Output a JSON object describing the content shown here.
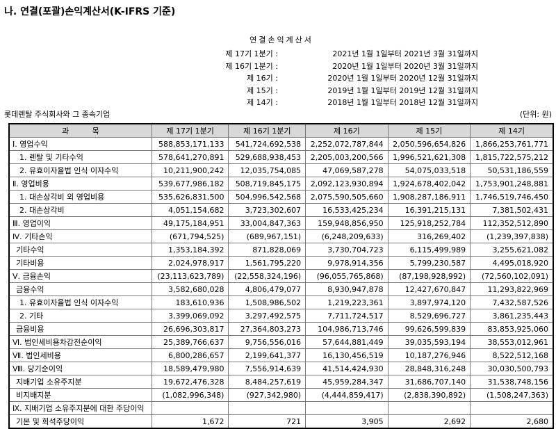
{
  "title": "나. 연결(포괄)손익계산서(K-IFRS 기준)",
  "statement_title": "연결손익계산서",
  "periods": [
    {
      "label": "제 17기 1분기 :",
      "range": "2021년 1월 1일부터 2021년 3월 31일까지"
    },
    {
      "label": "제 16기 1분기 :",
      "range": "2020년 1월 1일부터 2020년 3월 31일까지"
    },
    {
      "label": "제 16기 :",
      "range": "2020년 1월 1일부터 2020년 12월 31일까지"
    },
    {
      "label": "제 15기 :",
      "range": "2019년 1월 1일부터 2019년 12월 31일까지"
    },
    {
      "label": "제 14기 :",
      "range": "2018년 1월 1일부터 2018년 12월 31일까지"
    }
  ],
  "company": "롯데렌탈 주식회사와 그 종속기업",
  "unit": "(단위: 원)",
  "table": {
    "headers": [
      "과 목",
      "제 17기 1분기",
      "제 16기 1분기",
      "제 16기",
      "제 15기",
      "제 14기"
    ],
    "rows": [
      {
        "label": "Ⅰ. 영업수익",
        "indent": 0,
        "values": [
          "588,853,171,133",
          "541,724,692,538",
          "2,252,072,787,844",
          "2,050,596,654,826",
          "1,866,253,761,771"
        ]
      },
      {
        "label": "1. 렌탈 및 기타수익",
        "indent": 2,
        "values": [
          "578,641,270,891",
          "529,688,938,453",
          "2,205,003,200,566",
          "1,996,521,621,308",
          "1,815,722,575,212"
        ]
      },
      {
        "label": "2. 유효이자율법 인식 이자수익",
        "indent": 2,
        "values": [
          "10,211,900,242",
          "12,035,754,085",
          "47,069,587,278",
          "54,075,033,518",
          "50,531,186,559"
        ]
      },
      {
        "label": "Ⅱ. 영업비용",
        "indent": 0,
        "values": [
          "539,677,986,182",
          "508,719,845,175",
          "2,092,123,930,894",
          "1,924,678,402,042",
          "1,753,901,248,881"
        ]
      },
      {
        "label": "1. 대손상각비 외 영업비용",
        "indent": 2,
        "values": [
          "535,626,831,500",
          "504,996,542,568",
          "2,075,590,505,660",
          "1,908,287,186,911",
          "1,746,519,746,450"
        ]
      },
      {
        "label": "2. 대손상각비",
        "indent": 2,
        "values": [
          "4,051,154,682",
          "3,723,302,607",
          "16,533,425,234",
          "16,391,215,131",
          "7,381,502,431"
        ]
      },
      {
        "label": "Ⅲ. 영업이익",
        "indent": 0,
        "values": [
          "49,175,184,951",
          "33,004,847,363",
          "159,948,856,950",
          "125,918,252,784",
          "112,352,512,890"
        ]
      },
      {
        "label": "Ⅳ. 기타손익",
        "indent": 0,
        "values": [
          "(671,794,525)",
          "(689,967,151)",
          "(6,248,209,633)",
          "316,269,402",
          "(1,239,397,838)"
        ]
      },
      {
        "label": "기타수익",
        "indent": 1,
        "values": [
          "1,353,184,392",
          "871,828,069",
          "3,730,704,723",
          "6,115,499,989",
          "3,255,621,082"
        ]
      },
      {
        "label": "기타비용",
        "indent": 1,
        "values": [
          "2,024,978,917",
          "1,561,795,220",
          "9,978,914,356",
          "5,799,230,587",
          "4,495,018,920"
        ]
      },
      {
        "label": "Ⅴ. 금융손익",
        "indent": 0,
        "values": [
          "(23,113,623,789)",
          "(22,558,324,196)",
          "(96,055,765,868)",
          "(87,198,928,992)",
          "(72,560,102,091)"
        ]
      },
      {
        "label": "금융수익",
        "indent": 1,
        "values": [
          "3,582,680,028",
          "4,806,479,077",
          "8,930,947,878",
          "12,427,670,847",
          "11,293,822,969"
        ]
      },
      {
        "label": "1. 유효이자율법 인식 이자수익",
        "indent": 2,
        "values": [
          "183,610,936",
          "1,508,986,502",
          "1,219,223,361",
          "3,897,974,120",
          "7,432,587,526"
        ]
      },
      {
        "label": "2. 기타",
        "indent": 2,
        "values": [
          "3,399,069,092",
          "3,297,492,575",
          "7,711,724,517",
          "8,529,696,727",
          "3,861,235,443"
        ]
      },
      {
        "label": "금융비용",
        "indent": 1,
        "values": [
          "26,696,303,817",
          "27,364,803,273",
          "104,986,713,746",
          "99,626,599,839",
          "83,853,925,060"
        ]
      },
      {
        "label": "Ⅵ. 법인세비용차감전순이익",
        "indent": 0,
        "values": [
          "25,389,766,637",
          "9,756,556,016",
          "57,644,881,449",
          "39,035,593,194",
          "38,553,012,961"
        ]
      },
      {
        "label": "Ⅶ. 법인세비용",
        "indent": 0,
        "values": [
          "6,800,286,657",
          "2,199,641,377",
          "16,130,456,519",
          "10,187,276,946",
          "8,522,512,168"
        ]
      },
      {
        "label": "Ⅷ. 당기순이익",
        "indent": 0,
        "values": [
          "18,589,479,980",
          "7,556,914,639",
          "41,514,424,930",
          "28,848,316,248",
          "30,030,500,793"
        ]
      },
      {
        "label": "지배기업 소유주지분",
        "indent": 1,
        "values": [
          "19,672,476,328",
          "8,484,257,619",
          "45,959,284,347",
          "31,686,707,140",
          "31,538,748,156"
        ]
      },
      {
        "label": "비지배지분",
        "indent": 1,
        "values": [
          "(1,082,996,348)",
          "(927,342,980)",
          "(4,444,859,417)",
          "(2,838,390,892)",
          "(1,508,247,363)"
        ]
      },
      {
        "label": "Ⅸ. 지배기업 소유주지분에 대한 주당이익",
        "indent": 0,
        "values": [
          "",
          "",
          "",
          "",
          ""
        ]
      },
      {
        "label": "기본 및 희석주당이익",
        "indent": 1,
        "values": [
          "1,672",
          "721",
          "3,905",
          "2,692",
          "2,680"
        ]
      }
    ]
  }
}
